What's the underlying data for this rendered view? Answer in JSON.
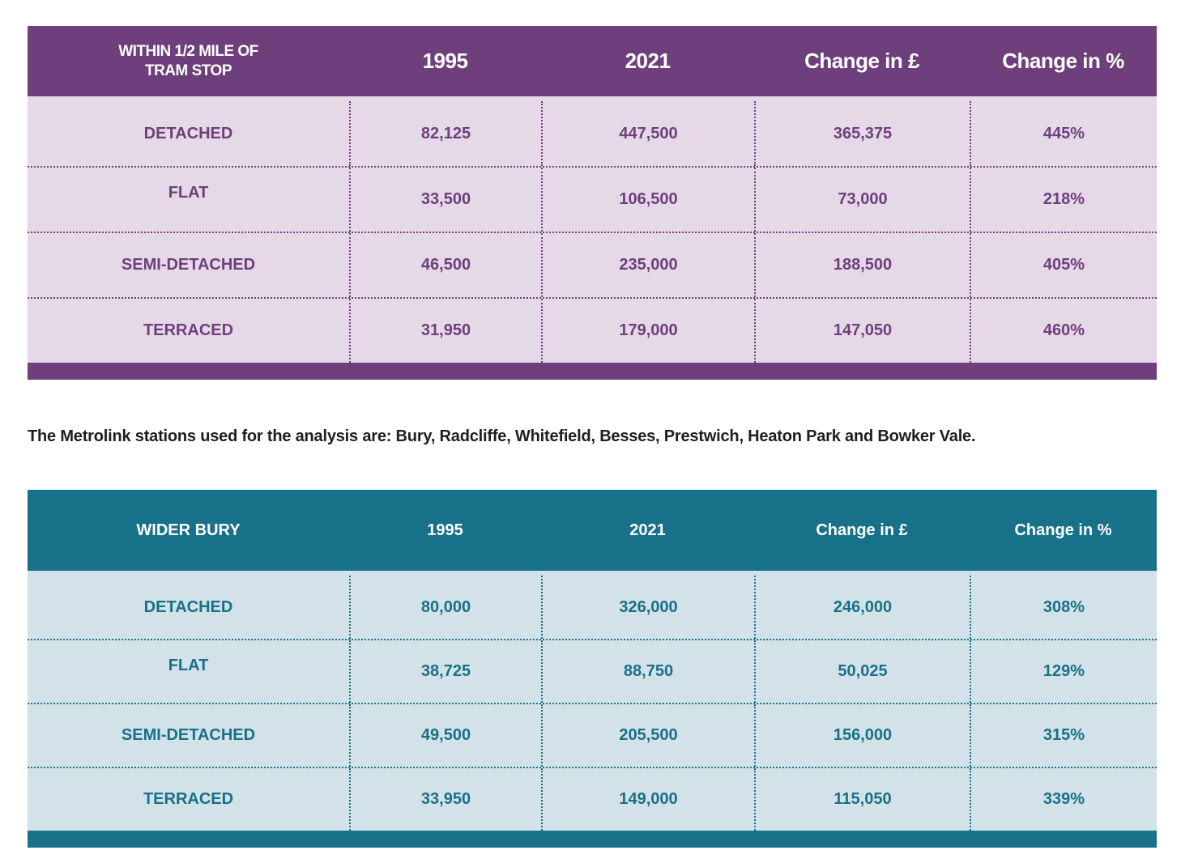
{
  "table1": {
    "headers": [
      "WITHIN 1/2 MILE OF\nTRAM STOP",
      "1995",
      "2021",
      "Change in £",
      "Change in %"
    ],
    "header_line1": "WITHIN 1/2 MILE OF",
    "header_line2": "TRAM STOP",
    "rows": [
      [
        "DETACHED",
        "82,125",
        "447,500",
        "365,375",
        "445%"
      ],
      [
        "FLAT",
        "33,500",
        "106,500",
        "73,000",
        "218%"
      ],
      [
        "SEMI-DETACHED",
        "46,500",
        "235,000",
        "188,500",
        "405%"
      ],
      [
        "TERRACED",
        "31,950",
        "179,000",
        "147,050",
        "460%"
      ]
    ],
    "color": "#6e3f7b"
  },
  "note": "The Metrolink stations used for the analysis are: Bury, Radcliffe, Whitefield, Besses, Prestwich, Heaton Park and Bowker Vale.",
  "table2": {
    "headers": [
      "WIDER BURY",
      "1995",
      "2021",
      "Change in £",
      "Change in %"
    ],
    "rows": [
      [
        "DETACHED",
        "80,000",
        "326,000",
        "246,000",
        "308%"
      ],
      [
        "FLAT",
        "38,725",
        "88,750",
        "50,025",
        "129%"
      ],
      [
        "SEMI-DETACHED",
        "49,500",
        "205,500",
        "156,000",
        "315%"
      ],
      [
        "TERRACED",
        "33,950",
        "149,000",
        "115,050",
        "339%"
      ]
    ],
    "color": "#177189"
  }
}
